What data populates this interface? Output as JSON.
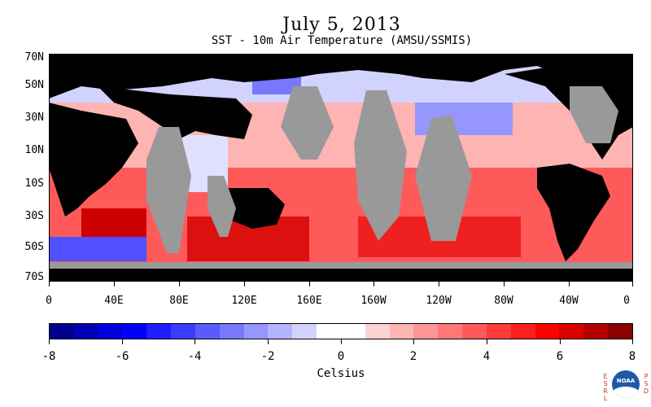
{
  "header": {
    "date_title": "July 5, 2013",
    "subtitle": "SST - 10m Air Temperature (AMSU/SSMIS)"
  },
  "map": {
    "lat_labels": [
      "70N",
      "50N",
      "30N",
      "10N",
      "10S",
      "30S",
      "50S",
      "70S"
    ],
    "lon_labels": [
      "0",
      "40E",
      "80E",
      "120E",
      "160E",
      "160W",
      "120W",
      "80W",
      "40W",
      "0"
    ],
    "colors": {
      "land": "#000000",
      "no_data": "#999999"
    }
  },
  "colorbar": {
    "unit_label": "Celsius",
    "tick_labels": [
      "-8",
      "-6",
      "-4",
      "-2",
      "0",
      "2",
      "4",
      "6",
      "8"
    ],
    "min": -8,
    "max": 8,
    "colors": [
      "#00008c",
      "#0000b4",
      "#0000dc",
      "#0000ff",
      "#1e1eff",
      "#3c3cff",
      "#5a5aff",
      "#7878ff",
      "#9696ff",
      "#b4b4ff",
      "#d2d2ff",
      "#ffffff",
      "#ffffff",
      "#ffd2d2",
      "#ffb4b4",
      "#ff9696",
      "#ff7878",
      "#ff5a5a",
      "#ff3c3c",
      "#ff1e1e",
      "#ff0000",
      "#dc0000",
      "#b40000",
      "#8c0000"
    ]
  },
  "logo": {
    "left_letters": [
      "E",
      "S",
      "R",
      "L"
    ],
    "right_letters": [
      "P",
      "S",
      "D"
    ],
    "badge_text": "NOAA"
  }
}
